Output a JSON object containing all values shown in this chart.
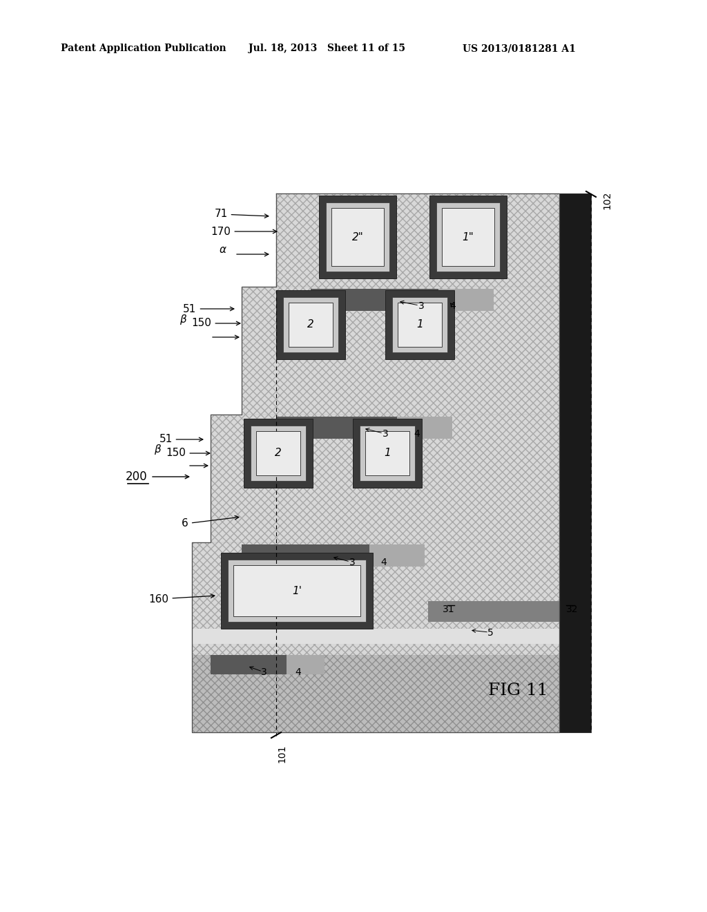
{
  "header_left": "Patent Application Publication",
  "header_mid": "Jul. 18, 2013   Sheet 11 of 15",
  "header_right": "US 2013/0181281 A1",
  "fig_label": "FIG 11",
  "bg": "#ffffff",
  "c_hatch_bg": "#c0c0c0",
  "c_dark": "#444444",
  "c_very_dark": "#222222",
  "c_mid": "#888888",
  "c_bar_dark": "#606060",
  "c_bar_mid": "#aaaaaa",
  "c_white_strip": "#e8e8e8",
  "c_trench_outer": "#3a3a3a",
  "c_trench_fill": "#d8d8d8",
  "c_trench_white": "#f0f0f0"
}
